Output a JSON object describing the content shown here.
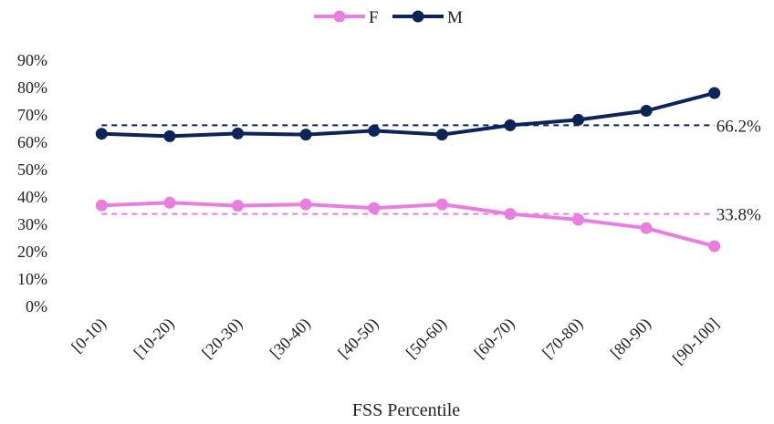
{
  "chart_data": {
    "type": "line",
    "title": "",
    "xlabel": "FSS Percentile",
    "ylabel": "",
    "categories": [
      "[0-10)",
      "[10-20)",
      "[20-30)",
      "[30-40)",
      "[40-50)",
      "[50-60)",
      "[60-70)",
      "[70-80)",
      "[80-90)",
      "[90-100]"
    ],
    "ylim": [
      0,
      90
    ],
    "y_ticks": [
      "0%",
      "10%",
      "20%",
      "30%",
      "40%",
      "50%",
      "60%",
      "70%",
      "80%",
      "90%"
    ],
    "grid": false,
    "legend_position": "top-center",
    "series": [
      {
        "name": "F",
        "color": "#e97ee0",
        "values": [
          36.9,
          37.9,
          36.8,
          37.3,
          35.9,
          37.3,
          33.8,
          31.7,
          28.6,
          22.0
        ]
      },
      {
        "name": "M",
        "color": "#0d2459",
        "values": [
          63.1,
          62.2,
          63.2,
          62.8,
          64.2,
          62.8,
          66.2,
          68.2,
          71.5,
          78.0
        ]
      }
    ],
    "reference_lines": [
      {
        "series": "F",
        "value": 33.8,
        "label": "33.8%",
        "style": "dashed"
      },
      {
        "series": "M",
        "value": 66.2,
        "label": "66.2%",
        "style": "dashed"
      }
    ]
  }
}
